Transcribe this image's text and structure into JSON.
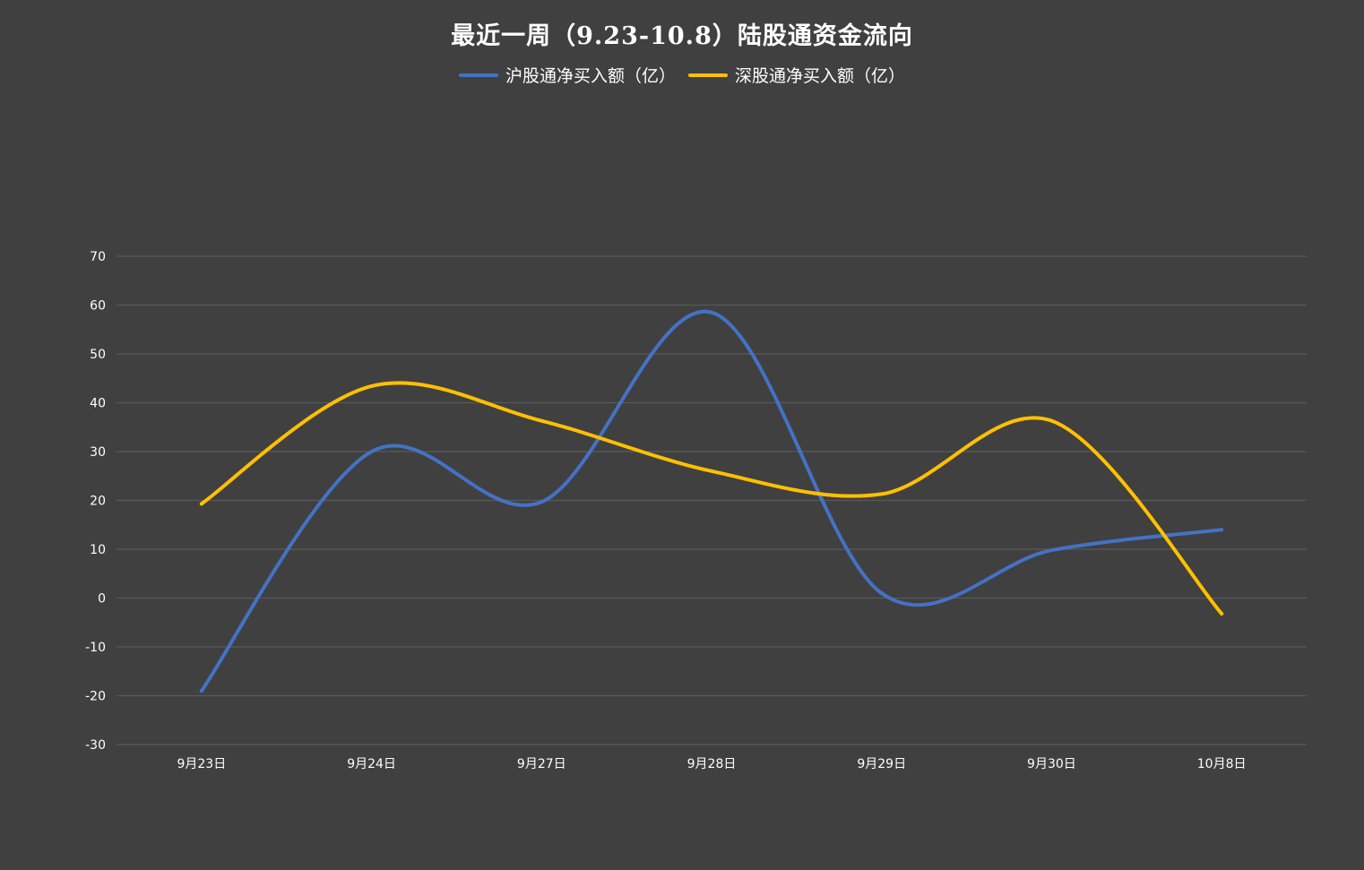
{
  "chart_data": {
    "type": "line",
    "title": "最近一周（9.23-10.8）陆股通资金流向",
    "categories": [
      "9月23日",
      "9月24日",
      "9月27日",
      "9月28日",
      "9月29日",
      "9月30日",
      "10月8日"
    ],
    "series": [
      {
        "name": "沪股通净买入额（亿）",
        "color": "#4472C4",
        "values": [
          -19,
          30,
          19.7,
          58.5,
          1,
          9.8,
          14
        ]
      },
      {
        "name": "深股通净买入额（亿）",
        "color": "#FFC000",
        "values": [
          19.3,
          43.4,
          36.3,
          26,
          21.3,
          36.3,
          -3.2
        ]
      }
    ],
    "ylim": [
      -30,
      70
    ],
    "yticks": [
      -30,
      -20,
      -10,
      0,
      10,
      20,
      30,
      40,
      50,
      60,
      70
    ],
    "grid": true,
    "smooth": true,
    "legend_position": "top",
    "background": "#404040",
    "grid_color": "#595959"
  }
}
